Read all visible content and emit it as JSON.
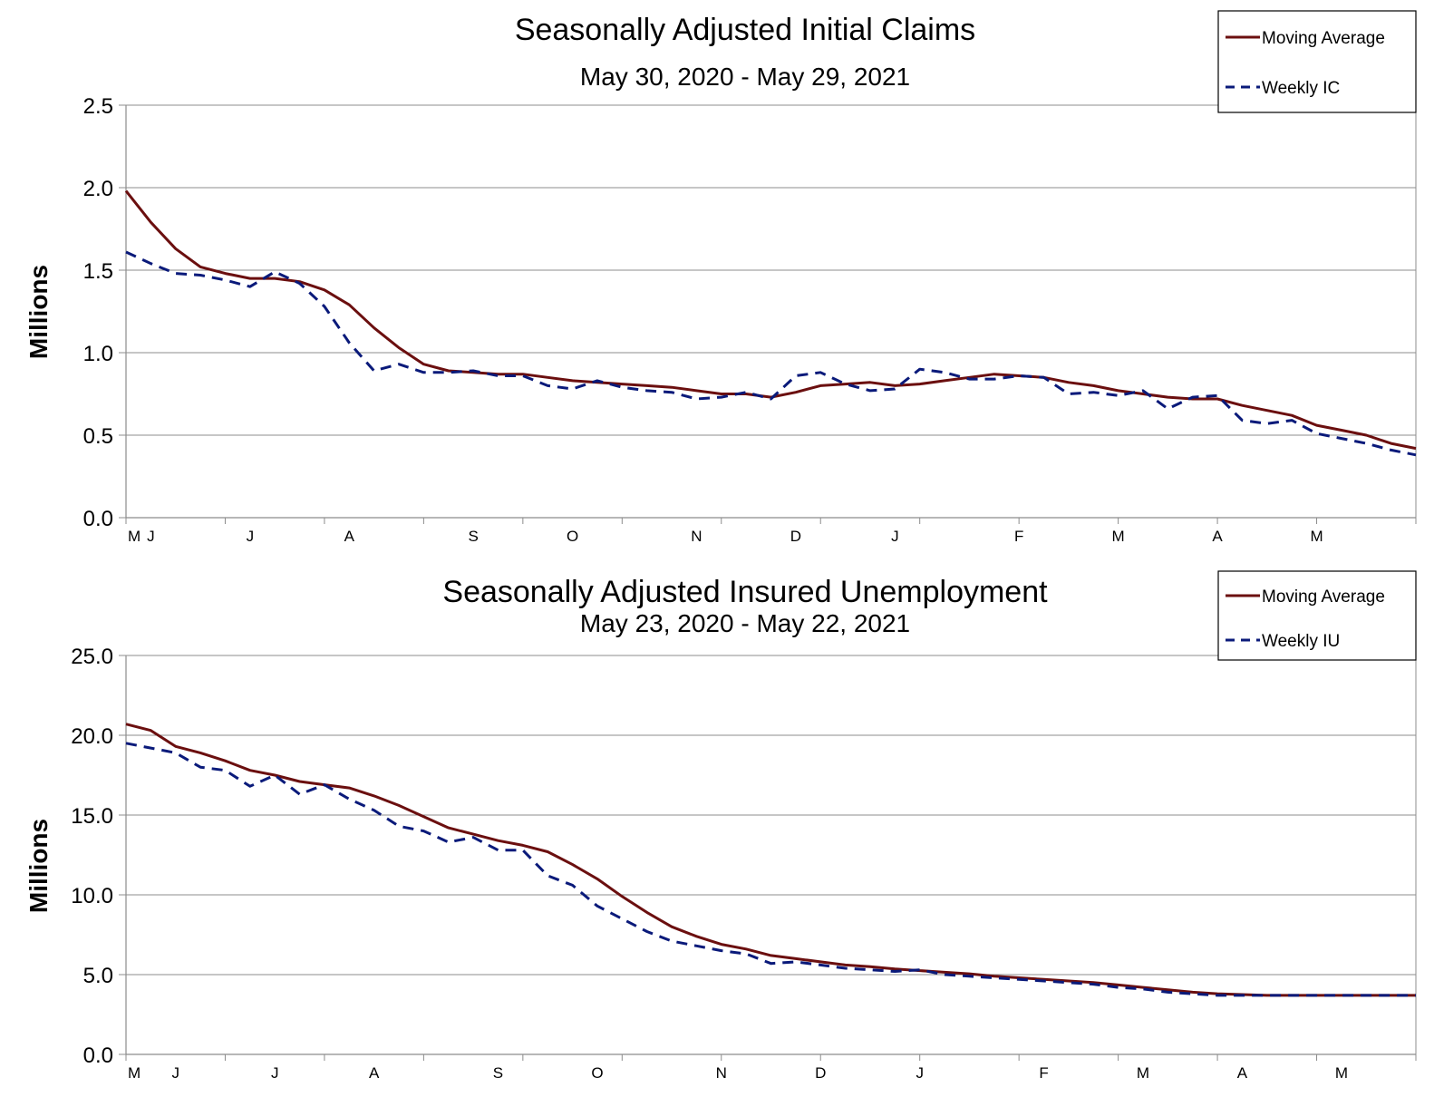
{
  "colors": {
    "moving_average": "#6b0f0f",
    "weekly": "#0a1a7a",
    "grid": "#8c8c8c",
    "axis": "#8c8c8c"
  },
  "chart_data": [
    {
      "type": "line",
      "title": "Seasonally Adjusted Initial Claims",
      "subtitle": "May 30, 2020 - May 29, 2021",
      "xlabel": "",
      "ylabel": "Millions",
      "ylim": [
        0,
        2.5
      ],
      "y_ticks": [
        "0.0",
        "0.5",
        "1.0",
        "1.5",
        "2.0",
        "2.5"
      ],
      "x_tick_labels": [
        {
          "label": "M",
          "week": 0
        },
        {
          "label": "J",
          "week": 1
        },
        {
          "label": "J",
          "week": 5
        },
        {
          "label": "A",
          "week": 9
        },
        {
          "label": "S",
          "week": 14
        },
        {
          "label": "O",
          "week": 18
        },
        {
          "label": "N",
          "week": 23
        },
        {
          "label": "D",
          "week": 27
        },
        {
          "label": "J",
          "week": 31
        },
        {
          "label": "F",
          "week": 36
        },
        {
          "label": "M",
          "week": 40
        },
        {
          "label": "A",
          "week": 44
        },
        {
          "label": "M",
          "week": 48
        }
      ],
      "grid": true,
      "legend_placement": "top-right",
      "series": [
        {
          "name": "Moving Average",
          "style": "solid",
          "values": [
            1.98,
            1.79,
            1.63,
            1.52,
            1.48,
            1.45,
            1.45,
            1.43,
            1.38,
            1.29,
            1.15,
            1.03,
            0.93,
            0.89,
            0.88,
            0.87,
            0.87,
            0.85,
            0.83,
            0.82,
            0.81,
            0.8,
            0.79,
            0.77,
            0.75,
            0.75,
            0.73,
            0.76,
            0.8,
            0.81,
            0.82,
            0.8,
            0.81,
            0.83,
            0.85,
            0.87,
            0.86,
            0.85,
            0.82,
            0.8,
            0.77,
            0.75,
            0.73,
            0.72,
            0.72,
            0.68,
            0.65,
            0.62,
            0.56,
            0.53,
            0.5,
            0.45,
            0.42
          ]
        },
        {
          "name": "Weekly IC",
          "style": "dashed",
          "values": [
            1.61,
            1.54,
            1.48,
            1.47,
            1.44,
            1.4,
            1.49,
            1.42,
            1.28,
            1.06,
            0.89,
            0.93,
            0.88,
            0.88,
            0.89,
            0.86,
            0.86,
            0.8,
            0.78,
            0.83,
            0.79,
            0.77,
            0.76,
            0.72,
            0.73,
            0.76,
            0.72,
            0.86,
            0.88,
            0.81,
            0.77,
            0.78,
            0.9,
            0.88,
            0.84,
            0.84,
            0.86,
            0.85,
            0.75,
            0.76,
            0.74,
            0.77,
            0.66,
            0.73,
            0.74,
            0.59,
            0.57,
            0.59,
            0.51,
            0.48,
            0.45,
            0.41,
            0.38
          ]
        }
      ]
    },
    {
      "type": "line",
      "title": "Seasonally Adjusted Insured Unemployment",
      "subtitle": "May 23, 2020 - May 22, 2021",
      "xlabel": "",
      "ylabel": "Millions",
      "ylim": [
        0,
        25
      ],
      "y_ticks": [
        "0.0",
        "5.0",
        "10.0",
        "15.0",
        "20.0",
        "25.0"
      ],
      "x_tick_labels": [
        {
          "label": "M",
          "week": 0
        },
        {
          "label": "J",
          "week": 2
        },
        {
          "label": "J",
          "week": 6
        },
        {
          "label": "A",
          "week": 10
        },
        {
          "label": "S",
          "week": 15
        },
        {
          "label": "O",
          "week": 19
        },
        {
          "label": "N",
          "week": 24
        },
        {
          "label": "D",
          "week": 28
        },
        {
          "label": "J",
          "week": 32
        },
        {
          "label": "F",
          "week": 37
        },
        {
          "label": "M",
          "week": 41
        },
        {
          "label": "A",
          "week": 45
        },
        {
          "label": "M",
          "week": 49
        }
      ],
      "grid": true,
      "legend_placement": "top-right",
      "series": [
        {
          "name": "Moving Average",
          "style": "solid",
          "values": [
            20.7,
            20.3,
            19.3,
            18.9,
            18.4,
            17.8,
            17.5,
            17.1,
            16.9,
            16.7,
            16.2,
            15.6,
            14.9,
            14.2,
            13.8,
            13.4,
            13.1,
            12.7,
            11.9,
            11.0,
            9.9,
            8.9,
            8.0,
            7.4,
            6.9,
            6.6,
            6.2,
            6.0,
            5.8,
            5.6,
            5.5,
            5.35,
            5.25,
            5.15,
            5.05,
            4.9,
            4.8,
            4.7,
            4.6,
            4.5,
            4.35,
            4.2,
            4.05,
            3.9,
            3.8,
            3.75,
            3.7,
            3.7,
            3.7,
            3.7,
            3.7,
            3.7,
            3.7
          ]
        },
        {
          "name": "Weekly IU",
          "style": "dashed",
          "values": [
            19.5,
            19.2,
            18.9,
            18.0,
            17.8,
            16.8,
            17.5,
            16.3,
            16.9,
            16.0,
            15.3,
            14.3,
            14.0,
            13.3,
            13.6,
            12.8,
            12.8,
            11.2,
            10.6,
            9.3,
            8.5,
            7.7,
            7.1,
            6.8,
            6.5,
            6.3,
            5.7,
            5.8,
            5.6,
            5.4,
            5.3,
            5.2,
            5.3,
            5.0,
            4.9,
            4.8,
            4.7,
            4.6,
            4.5,
            4.4,
            4.2,
            4.1,
            3.9,
            3.8,
            3.7,
            3.7,
            3.7,
            3.7,
            3.7,
            3.7,
            3.7,
            3.7,
            3.7
          ]
        }
      ]
    }
  ]
}
